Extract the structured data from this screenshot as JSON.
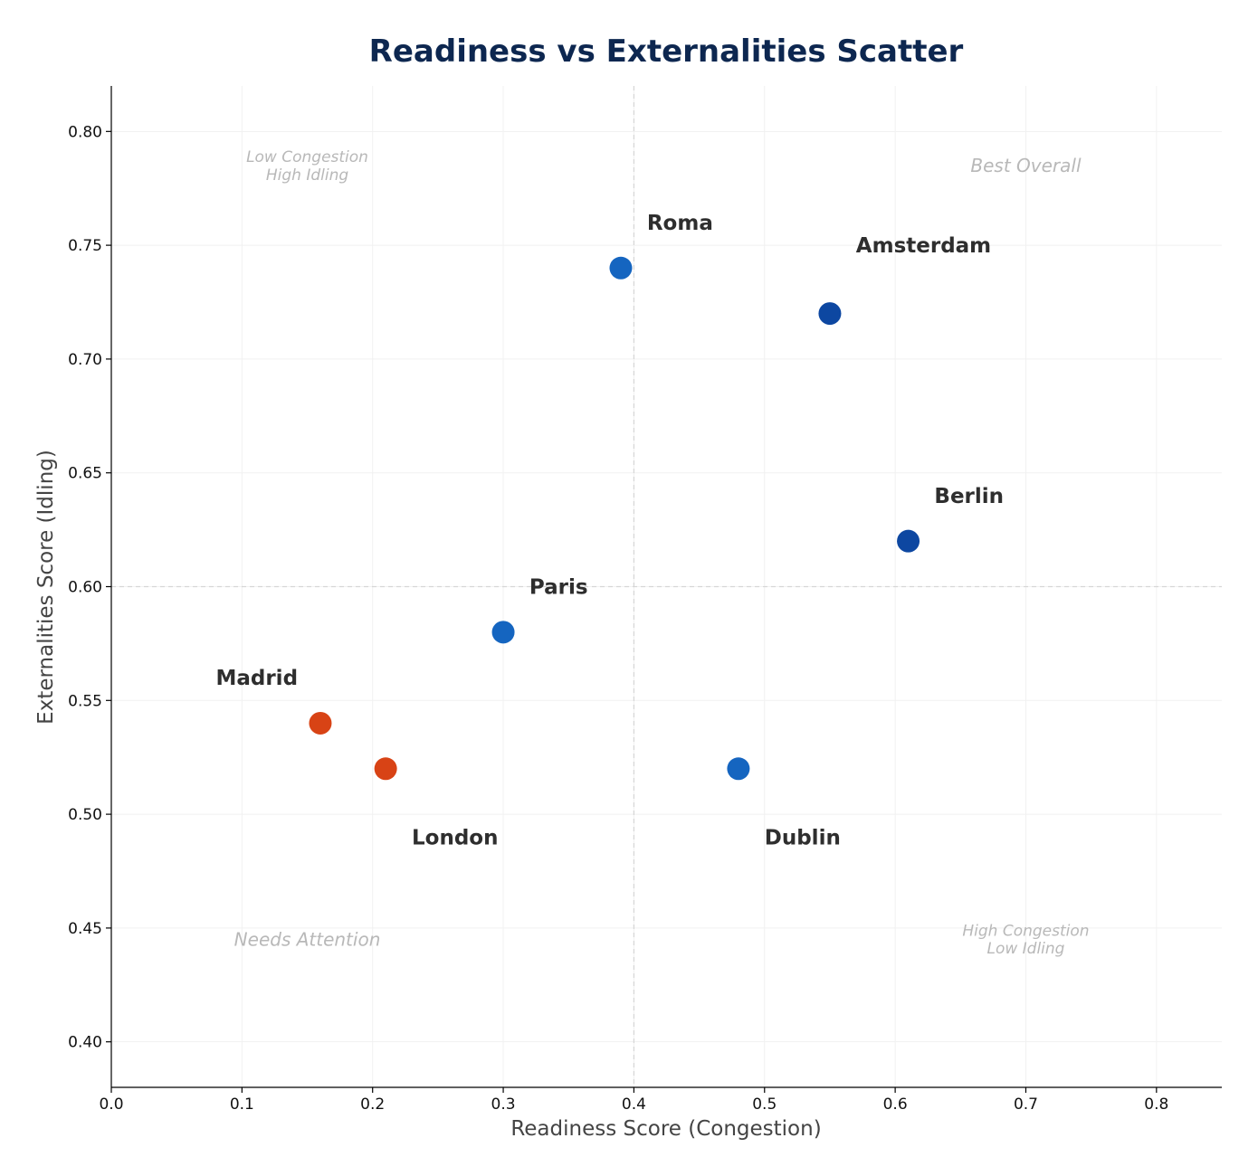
{
  "chart_data": {
    "type": "scatter",
    "title": "Readiness vs Externalities Scatter",
    "xlabel": "Readiness Score (Congestion)",
    "ylabel": "Externalities Score (Idling)",
    "xlim": [
      0.0,
      0.85
    ],
    "ylim": [
      0.38,
      0.82
    ],
    "xticks": [
      0.0,
      0.1,
      0.2,
      0.3,
      0.4,
      0.5,
      0.6,
      0.7,
      0.8
    ],
    "xtick_labels": [
      "0.0",
      "0.1",
      "0.2",
      "0.3",
      "0.4",
      "0.5",
      "0.6",
      "0.7",
      "0.8"
    ],
    "yticks": [
      0.4,
      0.45,
      0.5,
      0.55,
      0.6,
      0.65,
      0.7,
      0.75,
      0.8
    ],
    "ytick_labels": [
      "0.40",
      "0.45",
      "0.50",
      "0.55",
      "0.60",
      "0.65",
      "0.70",
      "0.75",
      "0.80"
    ],
    "grid": true,
    "reference_lines": {
      "x": 0.4,
      "y": 0.6
    },
    "points": [
      {
        "name": "Roma",
        "x": 0.39,
        "y": 0.74,
        "color": "#1565c0",
        "label_x": 0.41,
        "label_y": 0.76
      },
      {
        "name": "Amsterdam",
        "x": 0.55,
        "y": 0.72,
        "color": "#0d47a1",
        "label_x": 0.57,
        "label_y": 0.75
      },
      {
        "name": "Berlin",
        "x": 0.61,
        "y": 0.62,
        "color": "#0d47a1",
        "label_x": 0.63,
        "label_y": 0.64
      },
      {
        "name": "Paris",
        "x": 0.3,
        "y": 0.58,
        "color": "#1565c0",
        "label_x": 0.32,
        "label_y": 0.6
      },
      {
        "name": "Madrid",
        "x": 0.16,
        "y": 0.54,
        "color": "#d84315",
        "label_x": 0.08,
        "label_y": 0.56
      },
      {
        "name": "London",
        "x": 0.21,
        "y": 0.52,
        "color": "#d84315",
        "label_x": 0.23,
        "label_y": 0.49
      },
      {
        "name": "Dublin",
        "x": 0.48,
        "y": 0.52,
        "color": "#1565c0",
        "label_x": 0.5,
        "label_y": 0.49
      }
    ],
    "quadrant_labels": [
      {
        "lines": [
          "Low Congestion",
          "High Idling"
        ],
        "x": 0.15,
        "y": 0.785,
        "size": "small"
      },
      {
        "lines": [
          "Best Overall"
        ],
        "x": 0.7,
        "y": 0.785,
        "size": "large"
      },
      {
        "lines": [
          "Needs Attention"
        ],
        "x": 0.15,
        "y": 0.445,
        "size": "large"
      },
      {
        "lines": [
          "High Congestion",
          "Low Idling"
        ],
        "x": 0.7,
        "y": 0.445,
        "size": "small"
      }
    ]
  }
}
